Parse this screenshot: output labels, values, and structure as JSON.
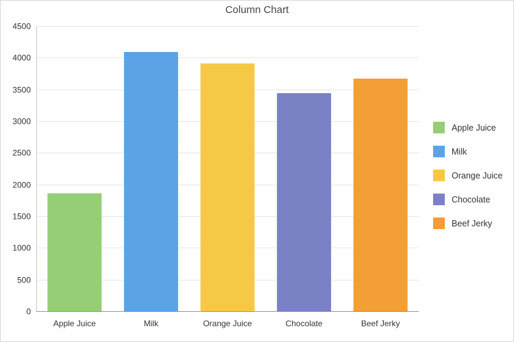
{
  "chart_data": {
    "type": "bar",
    "title": "Column Chart",
    "categories": [
      "Apple Juice",
      "Milk",
      "Orange Juice",
      "Chocolate",
      "Beef Jerky"
    ],
    "values": [
      1860,
      4090,
      3910,
      3440,
      3670
    ],
    "colors": [
      "#95ce77",
      "#5ba3e5",
      "#f5c945",
      "#7a81c5",
      "#f39e36"
    ],
    "ylim": [
      0,
      4500
    ],
    "yticks": [
      0,
      500,
      1000,
      1500,
      2000,
      2500,
      3000,
      3500,
      4000,
      4500
    ],
    "xlabel": "",
    "ylabel": "",
    "grid": true,
    "legend_position": "right",
    "legend": [
      "Apple Juice",
      "Milk",
      "Orange Juice",
      "Chocolate",
      "Beef Jerky"
    ]
  }
}
